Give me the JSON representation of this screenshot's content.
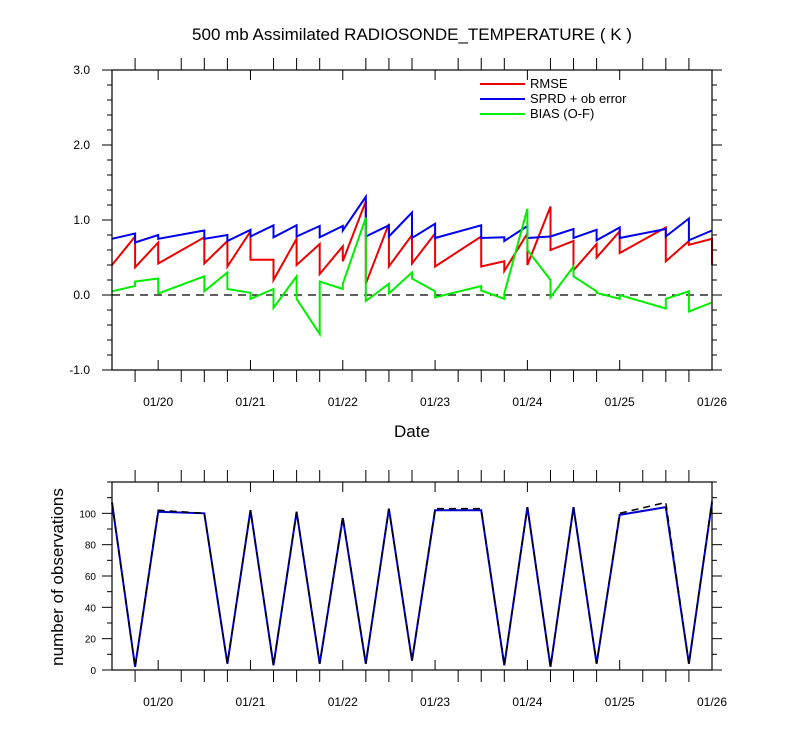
{
  "chart_data": [
    {
      "type": "line",
      "title": "500 mb Assimilated RADIOSONDE_TEMPERATURE ( K )",
      "xlabel": "Date",
      "ylabel": "",
      "x_tick_labels": [
        "01/20",
        "01/21",
        "01/22",
        "01/23",
        "01/24",
        "01/25",
        "01/26"
      ],
      "x_tick_values": [
        1,
        2,
        3,
        4,
        5,
        6,
        7
      ],
      "xlim": [
        0.5,
        7.0
      ],
      "ylim": [
        -1.0,
        3.0
      ],
      "y_tick_labels": [
        "3.0",
        "2.0",
        "1.0",
        "0.0",
        "-1.0"
      ],
      "y_tick_values": [
        3.0,
        2.0,
        1.0,
        0.0,
        -1.0
      ],
      "reference_line": {
        "y": 0.0,
        "style": "dashed"
      },
      "legend_position": "top-right",
      "series": [
        {
          "name": "RMSE",
          "color": "#ee0000",
          "x": [
            0.5,
            0.75,
            0.75,
            1.0,
            1.0,
            1.5,
            1.5,
            1.75,
            1.75,
            2.0,
            2.0,
            2.25,
            2.25,
            2.5,
            2.5,
            2.75,
            2.75,
            3.0,
            3.0,
            3.25,
            3.25,
            3.5,
            3.5,
            3.75,
            3.75,
            4.0,
            4.0,
            4.5,
            4.5,
            4.75,
            4.75,
            5.0,
            5.0,
            5.25,
            5.25,
            5.5,
            5.5,
            5.75,
            5.75,
            6.0,
            6.0,
            6.5,
            6.5,
            6.75,
            6.75,
            7.0,
            7.0
          ],
          "y": [
            0.4,
            0.78,
            0.37,
            0.7,
            0.42,
            0.77,
            0.42,
            0.72,
            0.38,
            0.85,
            0.47,
            0.47,
            0.2,
            0.75,
            0.4,
            0.68,
            0.28,
            0.65,
            0.45,
            1.25,
            0.15,
            0.95,
            0.38,
            0.8,
            0.42,
            0.82,
            0.38,
            0.78,
            0.38,
            0.45,
            0.32,
            0.82,
            0.4,
            1.18,
            0.6,
            0.72,
            0.33,
            0.68,
            0.5,
            0.85,
            0.56,
            0.9,
            0.45,
            0.72,
            0.67,
            0.75,
            0.4
          ]
        },
        {
          "name": "SPRD + ob error",
          "color": "#0000ee",
          "x": [
            0.5,
            0.75,
            0.75,
            1.0,
            1.0,
            1.5,
            1.5,
            1.75,
            1.75,
            2.0,
            2.0,
            2.25,
            2.25,
            2.5,
            2.5,
            2.75,
            2.75,
            3.0,
            3.0,
            3.25,
            3.25,
            3.5,
            3.5,
            3.75,
            3.75,
            4.0,
            4.0,
            4.5,
            4.5,
            4.75,
            4.75,
            5.0,
            5.0,
            5.25,
            5.25,
            5.5,
            5.5,
            5.75,
            5.75,
            6.0,
            6.0,
            6.5,
            6.5,
            6.75,
            6.75,
            7.0
          ],
          "y": [
            0.75,
            0.82,
            0.7,
            0.8,
            0.75,
            0.86,
            0.75,
            0.8,
            0.72,
            0.87,
            0.78,
            0.93,
            0.77,
            0.93,
            0.78,
            0.92,
            0.77,
            0.92,
            0.86,
            1.31,
            0.78,
            0.93,
            0.78,
            1.1,
            0.76,
            0.95,
            0.76,
            0.93,
            0.76,
            0.77,
            0.72,
            0.92,
            0.76,
            0.78,
            0.78,
            0.88,
            0.76,
            0.87,
            0.73,
            0.9,
            0.76,
            0.88,
            0.78,
            1.02,
            0.73,
            0.86
          ]
        },
        {
          "name": "BIAS (O-F)",
          "color": "#00ee00",
          "x": [
            0.5,
            0.75,
            0.75,
            1.0,
            1.0,
            1.5,
            1.5,
            1.75,
            1.75,
            2.0,
            2.0,
            2.25,
            2.25,
            2.5,
            2.5,
            2.75,
            2.75,
            3.0,
            3.0,
            3.25,
            3.25,
            3.5,
            3.5,
            3.75,
            3.75,
            4.0,
            4.0,
            4.5,
            4.5,
            4.75,
            4.75,
            5.0,
            5.0,
            5.25,
            5.25,
            5.5,
            5.5,
            5.75,
            5.75,
            6.0,
            6.0,
            6.5,
            6.5,
            6.75,
            6.75,
            7.0
          ],
          "y": [
            0.05,
            0.12,
            0.18,
            0.22,
            0.02,
            0.25,
            0.05,
            0.3,
            0.08,
            0.03,
            -0.05,
            0.08,
            -0.17,
            0.25,
            -0.05,
            -0.52,
            0.18,
            0.08,
            0.15,
            1.03,
            -0.08,
            0.15,
            0.02,
            0.3,
            0.22,
            0.05,
            -0.03,
            0.12,
            0.06,
            -0.05,
            0.02,
            1.15,
            0.6,
            0.2,
            -0.03,
            0.38,
            0.25,
            0.05,
            0.03,
            -0.05,
            0.0,
            -0.18,
            -0.05,
            0.05,
            -0.22,
            -0.1
          ]
        }
      ]
    },
    {
      "type": "line",
      "title": "",
      "xlabel": "",
      "ylabel": "number of observations",
      "x_tick_labels": [
        "01/20",
        "01/21",
        "01/22",
        "01/23",
        "01/24",
        "01/25",
        "01/26"
      ],
      "x_tick_values": [
        1,
        2,
        3,
        4,
        5,
        6,
        7
      ],
      "xlim": [
        0.5,
        7.0
      ],
      "ylim": [
        0,
        120
      ],
      "y_tick_labels": [
        "100",
        "80",
        "60",
        "40",
        "20",
        "0"
      ],
      "y_tick_values": [
        100,
        80,
        60,
        40,
        20,
        0
      ],
      "series": [
        {
          "name": "",
          "color": "#0000cc",
          "style": "solid",
          "x": [
            0.5,
            0.75,
            1.0,
            1.5,
            1.75,
            2.0,
            2.25,
            2.5,
            2.75,
            3.0,
            3.25,
            3.5,
            3.75,
            4.0,
            4.5,
            4.75,
            5.0,
            5.25,
            5.5,
            5.75,
            6.0,
            6.5,
            6.75,
            7.0
          ],
          "y": [
            107,
            2,
            101,
            100,
            4,
            102,
            3,
            101,
            4,
            97,
            4,
            103,
            6,
            102,
            102,
            3,
            104,
            2,
            104,
            4,
            99,
            104,
            4,
            107
          ]
        },
        {
          "name": "",
          "color": "#000000",
          "style": "dashed",
          "x": [
            0.5,
            0.75,
            1.0,
            1.5,
            1.75,
            2.0,
            2.25,
            2.5,
            2.75,
            3.0,
            3.25,
            3.5,
            3.75,
            4.0,
            4.5,
            4.75,
            5.0,
            5.25,
            5.5,
            5.75,
            6.0,
            6.5,
            6.75,
            7.0
          ],
          "y": [
            107,
            2,
            102,
            100,
            4,
            102,
            3,
            101,
            4,
            98,
            4,
            103,
            6,
            103,
            103,
            3,
            104,
            2,
            104,
            4,
            100,
            107,
            4,
            108
          ]
        }
      ]
    }
  ]
}
